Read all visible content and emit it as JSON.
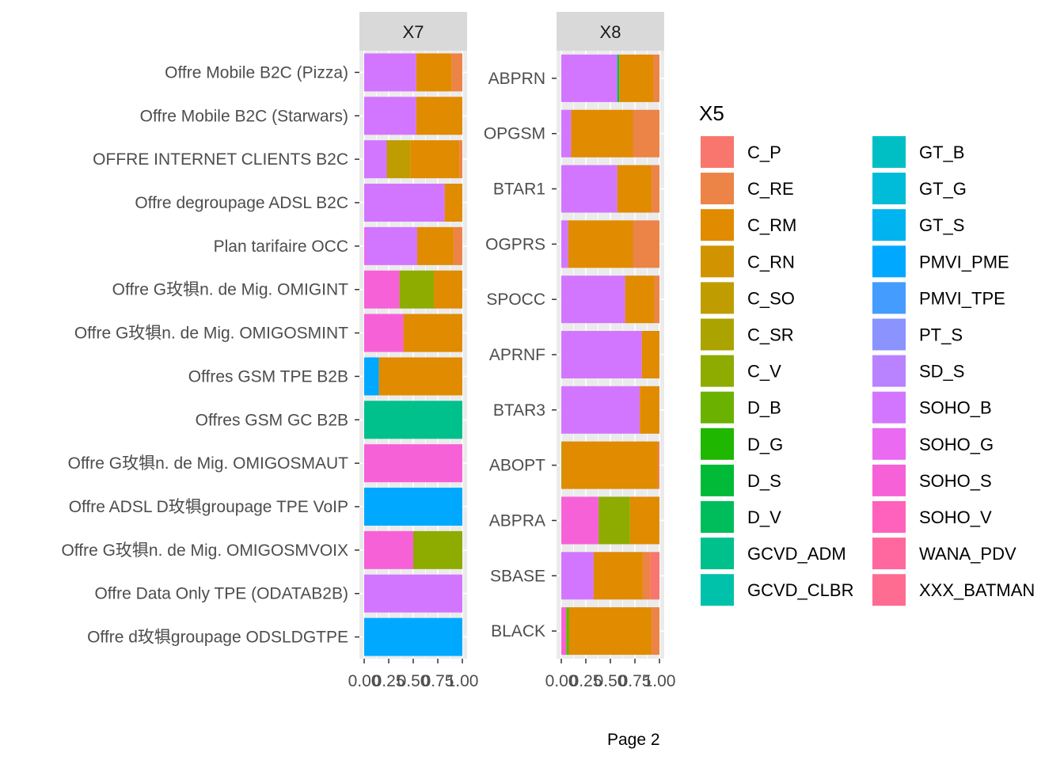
{
  "page_label": "Page 2",
  "chart_data": {
    "type": "bar",
    "orientation": "horizontal",
    "stacked": "fill",
    "legend": {
      "title": "X5",
      "placement": "right",
      "keys": [
        {
          "name": "C_P",
          "color": "#F8766D"
        },
        {
          "name": "C_RE",
          "color": "#EC8347"
        },
        {
          "name": "C_RM",
          "color": "#E08B00"
        },
        {
          "name": "C_RN",
          "color": "#D19300"
        },
        {
          "name": "C_SO",
          "color": "#BF9D00"
        },
        {
          "name": "C_SR",
          "color": "#ABA300"
        },
        {
          "name": "C_V",
          "color": "#8EAB00"
        },
        {
          "name": "D_B",
          "color": "#6BB100"
        },
        {
          "name": "D_G",
          "color": "#1FB700"
        },
        {
          "name": "D_S",
          "color": "#00BA38"
        },
        {
          "name": "D_V",
          "color": "#00BD5C"
        },
        {
          "name": "GCVD_ADM",
          "color": "#00C08B"
        },
        {
          "name": "GCVD_CLBR",
          "color": "#00C1AA"
        },
        {
          "name": "GT_B",
          "color": "#00BFC4"
        },
        {
          "name": "GT_G",
          "color": "#00BCD8"
        },
        {
          "name": "GT_S",
          "color": "#00B4EF"
        },
        {
          "name": "PMVI_PME",
          "color": "#00A9FF"
        },
        {
          "name": "PMVI_TPE",
          "color": "#449CFF"
        },
        {
          "name": "PT_S",
          "color": "#8B93FF"
        },
        {
          "name": "SD_S",
          "color": "#B983FF"
        },
        {
          "name": "SOHO_B",
          "color": "#D376FF"
        },
        {
          "name": "SOHO_G",
          "color": "#EA6AF1"
        },
        {
          "name": "SOHO_S",
          "color": "#F761D8"
        },
        {
          "name": "SOHO_V",
          "color": "#FF62BC"
        },
        {
          "name": "WANA_PDV",
          "color": "#FF689F"
        },
        {
          "name": "XXX_BATMAN",
          "color": "#FF6C91"
        }
      ]
    },
    "x_ticks": [
      "0.00",
      "0.25",
      "0.50",
      "0.75",
      "1.00"
    ],
    "xlim": [
      0,
      1
    ],
    "panels": [
      {
        "strip": "X7",
        "categories": [
          "Offre Mobile B2C (Pizza)",
          "Offre Mobile B2C (Starwars)",
          "OFFRE INTERNET CLIENTS B2C",
          "Offre degroupage ADSL B2C",
          "Plan tarifaire OCC",
          "Offre G玫犋n. de Mig. OMIGINT",
          "Offre G玫犋n. de Mig. OMIGOSMINT",
          "Offres GSM TPE B2B",
          "Offres GSM GC B2B",
          "Offre G玫犋n. de Mig. OMIGOSMAUT",
          "Offre ADSL D玫犋groupage TPE VoIP",
          "Offre G玫犋n. de Mig. OMIGOSMVOIX",
          "Offre Data Only TPE (ODATAB2B)",
          "Offre d玫犋groupage ODSLDGTPE"
        ],
        "bars": [
          [
            {
              "k": "SOHO_B",
              "v": 0.53
            },
            {
              "k": "C_RM",
              "v": 0.36
            },
            {
              "k": "C_RE",
              "v": 0.11
            }
          ],
          [
            {
              "k": "SOHO_B",
              "v": 0.53
            },
            {
              "k": "C_RM",
              "v": 0.47
            }
          ],
          [
            {
              "k": "SOHO_B",
              "v": 0.23
            },
            {
              "k": "C_SO",
              "v": 0.24
            },
            {
              "k": "C_RM",
              "v": 0.5
            },
            {
              "k": "C_RE",
              "v": 0.03
            }
          ],
          [
            {
              "k": "SOHO_B",
              "v": 0.82
            },
            {
              "k": "C_RM",
              "v": 0.18
            }
          ],
          [
            {
              "k": "SOHO_G",
              "v": 0.02
            },
            {
              "k": "SOHO_B",
              "v": 0.52
            },
            {
              "k": "C_RM",
              "v": 0.37
            },
            {
              "k": "C_RE",
              "v": 0.09
            }
          ],
          [
            {
              "k": "SOHO_S",
              "v": 0.36
            },
            {
              "k": "C_V",
              "v": 0.35
            },
            {
              "k": "C_RM",
              "v": 0.29
            }
          ],
          [
            {
              "k": "SOHO_S",
              "v": 0.4
            },
            {
              "k": "C_RM",
              "v": 0.6
            }
          ],
          [
            {
              "k": "PMVI_PME",
              "v": 0.15
            },
            {
              "k": "C_RM",
              "v": 0.85
            }
          ],
          [
            {
              "k": "GCVD_ADM",
              "v": 1.0
            }
          ],
          [
            {
              "k": "SOHO_S",
              "v": 1.0
            }
          ],
          [
            {
              "k": "PMVI_PME",
              "v": 1.0
            }
          ],
          [
            {
              "k": "SOHO_S",
              "v": 0.5
            },
            {
              "k": "C_V",
              "v": 0.5
            }
          ],
          [
            {
              "k": "SOHO_B",
              "v": 1.0
            }
          ],
          [
            {
              "k": "PMVI_PME",
              "v": 1.0
            }
          ]
        ]
      },
      {
        "strip": "X8",
        "categories": [
          "ABPRN",
          "OPGSM",
          "BTAR1",
          "OGPRS",
          "SPOCC",
          "APRNF",
          "BTAR3",
          "ABOPT",
          "ABPRA",
          "SBASE",
          "BLACK"
        ],
        "bars": [
          [
            {
              "k": "SOHO_B",
              "v": 0.57
            },
            {
              "k": "D_V",
              "v": 0.02
            },
            {
              "k": "C_RM",
              "v": 0.35
            },
            {
              "k": "C_RE",
              "v": 0.06
            }
          ],
          [
            {
              "k": "SOHO_B",
              "v": 0.1
            },
            {
              "k": "C_RM",
              "v": 0.63
            },
            {
              "k": "C_RE",
              "v": 0.27
            }
          ],
          [
            {
              "k": "SOHO_B",
              "v": 0.57
            },
            {
              "k": "C_RM",
              "v": 0.35
            },
            {
              "k": "C_RE",
              "v": 0.08
            }
          ],
          [
            {
              "k": "SOHO_B",
              "v": 0.07
            },
            {
              "k": "C_RM",
              "v": 0.66
            },
            {
              "k": "C_RE",
              "v": 0.27
            }
          ],
          [
            {
              "k": "SOHO_B",
              "v": 0.65
            },
            {
              "k": "C_RM",
              "v": 0.3
            },
            {
              "k": "C_RE",
              "v": 0.05
            }
          ],
          [
            {
              "k": "SOHO_B",
              "v": 0.82
            },
            {
              "k": "C_RM",
              "v": 0.18
            }
          ],
          [
            {
              "k": "SOHO_B",
              "v": 0.8
            },
            {
              "k": "C_RM",
              "v": 0.2
            }
          ],
          [
            {
              "k": "C_RN",
              "v": 0.02
            },
            {
              "k": "C_RM",
              "v": 0.96
            },
            {
              "k": "C_RE",
              "v": 0.02
            }
          ],
          [
            {
              "k": "SOHO_S",
              "v": 0.38
            },
            {
              "k": "C_V",
              "v": 0.32
            },
            {
              "k": "C_RM",
              "v": 0.3
            }
          ],
          [
            {
              "k": "SOHO_B",
              "v": 0.33
            },
            {
              "k": "C_RM",
              "v": 0.5
            },
            {
              "k": "C_RE",
              "v": 0.08
            },
            {
              "k": "C_P",
              "v": 0.09
            }
          ],
          [
            {
              "k": "SOHO_S",
              "v": 0.05
            },
            {
              "k": "D_B",
              "v": 0.03
            },
            {
              "k": "C_RM",
              "v": 0.84
            },
            {
              "k": "C_RE",
              "v": 0.08
            }
          ]
        ]
      }
    ]
  }
}
